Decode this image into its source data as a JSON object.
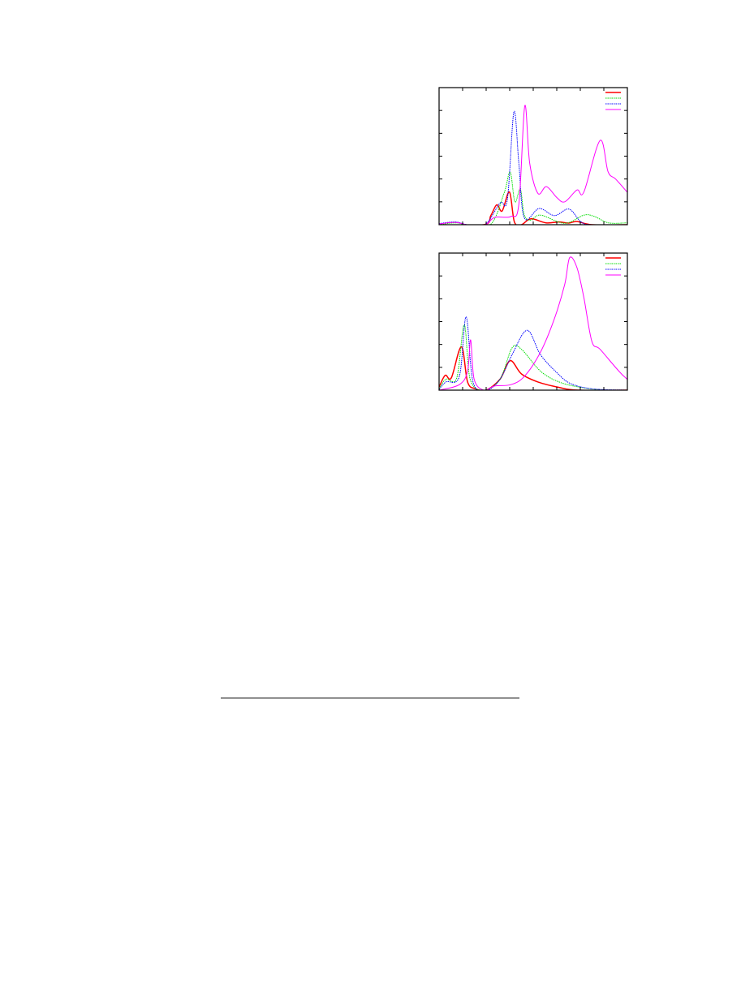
{
  "chart_data": [
    {
      "type": "line",
      "title": "",
      "xlabel": "",
      "ylabel": "",
      "xlim": [
        0,
        8
      ],
      "ylim": [
        0,
        6
      ],
      "x_major_ticks": 8,
      "y_major_ticks": 6,
      "grid": false,
      "legend": "top-right",
      "series": [
        {
          "color": "#ff0000",
          "style": "solid",
          "points": [
            [
              0,
              0
            ],
            [
              1.9,
              0
            ],
            [
              2.2,
              0.4
            ],
            [
              2.45,
              0.87
            ],
            [
              2.68,
              0.6
            ],
            [
              2.99,
              1.43
            ],
            [
              3.2,
              0.12
            ],
            [
              3.5,
              0
            ],
            [
              3.9,
              0.26
            ],
            [
              4.54,
              0.08
            ],
            [
              5.1,
              0.12
            ],
            [
              5.5,
              0.07
            ],
            [
              5.86,
              0.14
            ],
            [
              6.5,
              0
            ],
            [
              8,
              0
            ]
          ]
        },
        {
          "color": "#00dd00",
          "style": "dotted",
          "points": [
            [
              0,
              0
            ],
            [
              0.7,
              0.08
            ],
            [
              1.2,
              0
            ],
            [
              2.18,
              0
            ],
            [
              2.76,
              1.37
            ],
            [
              3.02,
              2.3
            ],
            [
              3.22,
              1.0
            ],
            [
              3.45,
              1.55
            ],
            [
              3.62,
              0.42
            ],
            [
              3.9,
              0.2
            ],
            [
              4.31,
              0.42
            ],
            [
              5.34,
              0.06
            ],
            [
              6.15,
              0.42
            ],
            [
              6.6,
              0.36
            ],
            [
              7.2,
              0.08
            ],
            [
              8,
              0.08
            ]
          ]
        },
        {
          "color": "#0000ff",
          "style": "dotted",
          "points": [
            [
              0,
              0.05
            ],
            [
              0.7,
              0.12
            ],
            [
              1.2,
              0
            ],
            [
              1.95,
              0
            ],
            [
              2.59,
              0.95
            ],
            [
              2.9,
              1.1
            ],
            [
              3.18,
              4.94
            ],
            [
              3.39,
              2.68
            ],
            [
              3.62,
              0.3
            ],
            [
              4.25,
              0.71
            ],
            [
              4.9,
              0.4
            ],
            [
              5.52,
              0.68
            ],
            [
              6.03,
              0.12
            ],
            [
              6.5,
              0
            ],
            [
              8,
              0
            ]
          ]
        },
        {
          "color": "#ff00ff",
          "style": "solid",
          "points": [
            [
              0,
              0.03
            ],
            [
              0.7,
              0.1
            ],
            [
              1.2,
              0
            ],
            [
              1.95,
              0
            ],
            [
              2.36,
              0.32
            ],
            [
              3.05,
              0.36
            ],
            [
              3.39,
              0.9
            ],
            [
              3.64,
              5.2
            ],
            [
              3.85,
              2.68
            ],
            [
              4.2,
              1.37
            ],
            [
              4.56,
              1.67
            ],
            [
              5.0,
              1.19
            ],
            [
              5.34,
              1.0
            ],
            [
              5.86,
              1.52
            ],
            [
              6.15,
              1.43
            ],
            [
              6.84,
              3.69
            ],
            [
              7.18,
              2.32
            ],
            [
              7.5,
              2.0
            ],
            [
              7.99,
              1.43
            ]
          ]
        }
      ]
    },
    {
      "type": "line",
      "title": "",
      "xlabel": "",
      "ylabel": "",
      "xlim": [
        0,
        8
      ],
      "ylim": [
        0,
        6
      ],
      "x_major_ticks": 8,
      "y_major_ticks": 6,
      "grid": false,
      "legend": "top-right",
      "series": [
        {
          "color": "#ff0000",
          "style": "solid",
          "points": [
            [
              0,
              0.14
            ],
            [
              0.26,
              0.65
            ],
            [
              0.52,
              0.54
            ],
            [
              0.95,
              1.9
            ],
            [
              1.21,
              0.36
            ],
            [
              1.55,
              0.06
            ],
            [
              2.0,
              0
            ],
            [
              2.59,
              0.48
            ],
            [
              3.02,
              1.29
            ],
            [
              3.5,
              0.71
            ],
            [
              4.2,
              0.36
            ],
            [
              5.1,
              0.12
            ],
            [
              5.9,
              0
            ],
            [
              8,
              0
            ]
          ]
        },
        {
          "color": "#00dd00",
          "style": "dotted",
          "points": [
            [
              0,
              0.06
            ],
            [
              0.29,
              0.48
            ],
            [
              0.75,
              0.54
            ],
            [
              1.07,
              2.86
            ],
            [
              1.32,
              0.48
            ],
            [
              1.9,
              0
            ],
            [
              2.59,
              0.48
            ],
            [
              3.1,
              1.85
            ],
            [
              3.5,
              1.79
            ],
            [
              4.31,
              0.83
            ],
            [
              5.1,
              0.36
            ],
            [
              6.03,
              0.12
            ],
            [
              7.1,
              0
            ],
            [
              8,
              0
            ]
          ]
        },
        {
          "color": "#0000ff",
          "style": "dotted",
          "points": [
            [
              0,
              0.02
            ],
            [
              0.29,
              0.36
            ],
            [
              0.86,
              0.6
            ],
            [
              1.15,
              3.21
            ],
            [
              1.44,
              0.36
            ],
            [
              2.0,
              0
            ],
            [
              2.59,
              0.48
            ],
            [
              3.1,
              1.55
            ],
            [
              3.74,
              2.62
            ],
            [
              4.31,
              1.55
            ],
            [
              5.0,
              0.77
            ],
            [
              5.57,
              0.3
            ],
            [
              6.5,
              0.06
            ],
            [
              8,
              0
            ]
          ]
        },
        {
          "color": "#ff00ff",
          "style": "solid",
          "points": [
            [
              0,
              0
            ],
            [
              0.86,
              0.24
            ],
            [
              1.21,
              0.83
            ],
            [
              1.34,
              2.2
            ],
            [
              1.49,
              0.48
            ],
            [
              1.9,
              0
            ],
            [
              2.36,
              0.18
            ],
            [
              3.05,
              0.24
            ],
            [
              3.62,
              0.6
            ],
            [
              4.31,
              1.67
            ],
            [
              4.89,
              3.1
            ],
            [
              5.34,
              4.64
            ],
            [
              5.55,
              5.8
            ],
            [
              5.86,
              5.36
            ],
            [
              6.15,
              4.05
            ],
            [
              6.49,
              2.14
            ],
            [
              6.84,
              1.79
            ],
            [
              7.64,
              0.83
            ],
            [
              7.99,
              0.48
            ]
          ]
        }
      ]
    }
  ]
}
